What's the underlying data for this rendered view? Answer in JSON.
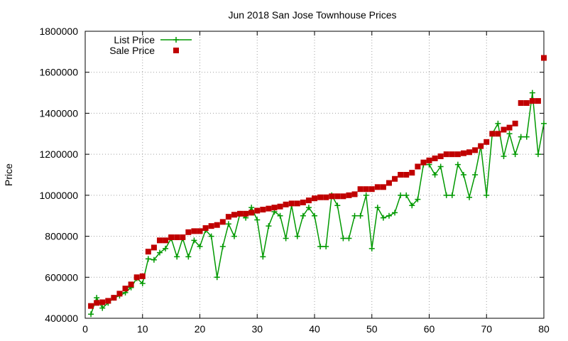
{
  "chart_data": {
    "type": "line",
    "title": "Jun 2018 San Jose Townhouse Prices",
    "xlabel": "",
    "ylabel": "Price",
    "xlim": [
      0,
      80
    ],
    "ylim": [
      400000,
      1800000
    ],
    "xticks": [
      0,
      10,
      20,
      30,
      40,
      50,
      60,
      70,
      80
    ],
    "yticks": [
      400000,
      600000,
      800000,
      1000000,
      1200000,
      1400000,
      1600000,
      1800000
    ],
    "grid": true,
    "legend": "top-left",
    "series": [
      {
        "name": "List Price",
        "style": "line-plus",
        "color": "#009900",
        "x": [
          1,
          2,
          3,
          4,
          5,
          6,
          7,
          8,
          9,
          10,
          11,
          12,
          13,
          14,
          15,
          16,
          17,
          18,
          19,
          20,
          21,
          22,
          23,
          24,
          25,
          26,
          27,
          28,
          29,
          30,
          31,
          32,
          33,
          34,
          35,
          36,
          37,
          38,
          39,
          40,
          41,
          42,
          43,
          44,
          45,
          46,
          47,
          48,
          49,
          50,
          51,
          52,
          53,
          54,
          55,
          56,
          57,
          58,
          59,
          60,
          61,
          62,
          63,
          64,
          65,
          66,
          67,
          68,
          69,
          70,
          71,
          72,
          73,
          74,
          75,
          76,
          77,
          78,
          79,
          80
        ],
        "values": [
          420000,
          500000,
          450000,
          475000,
          500000,
          510000,
          525000,
          550000,
          595000,
          570000,
          690000,
          685000,
          720000,
          740000,
          790000,
          700000,
          790000,
          700000,
          780000,
          750000,
          830000,
          800000,
          600000,
          750000,
          860000,
          800000,
          910000,
          890000,
          940000,
          880000,
          700000,
          850000,
          920000,
          900000,
          790000,
          950000,
          800000,
          900000,
          940000,
          900000,
          750000,
          750000,
          1000000,
          950000,
          790000,
          790000,
          900000,
          900000,
          1000000,
          740000,
          940000,
          890000,
          900000,
          915000,
          1000000,
          1000000,
          950000,
          980000,
          1150000,
          1150000,
          1100000,
          1140000,
          1000000,
          1000000,
          1150000,
          1100000,
          990000,
          1100000,
          1240000,
          1000000,
          1300000,
          1350000,
          1190000,
          1300000,
          1200000,
          1285000,
          1285000,
          1500000,
          1200000,
          1350000
        ]
      },
      {
        "name": "Sale Price",
        "style": "squares",
        "color": "#c00000",
        "x": [
          1,
          2,
          3,
          4,
          5,
          6,
          7,
          8,
          9,
          10,
          11,
          12,
          13,
          14,
          15,
          16,
          17,
          18,
          19,
          20,
          21,
          22,
          23,
          24,
          25,
          26,
          27,
          28,
          29,
          30,
          31,
          32,
          33,
          34,
          35,
          36,
          37,
          38,
          39,
          40,
          41,
          42,
          43,
          44,
          45,
          46,
          47,
          48,
          49,
          50,
          51,
          52,
          53,
          54,
          55,
          56,
          57,
          58,
          59,
          60,
          61,
          62,
          63,
          64,
          65,
          66,
          67,
          68,
          69,
          70,
          71,
          72,
          73,
          74,
          75,
          76,
          77,
          78,
          79,
          80
        ],
        "values": [
          460000,
          475000,
          478000,
          485000,
          500000,
          520000,
          545000,
          565000,
          600000,
          605000,
          725000,
          745000,
          780000,
          780000,
          795000,
          795000,
          795000,
          820000,
          825000,
          825000,
          840000,
          850000,
          855000,
          870000,
          895000,
          905000,
          910000,
          910000,
          915000,
          925000,
          930000,
          935000,
          940000,
          945000,
          955000,
          960000,
          960000,
          965000,
          975000,
          985000,
          990000,
          990000,
          995000,
          995000,
          995000,
          1000000,
          1005000,
          1030000,
          1030000,
          1030000,
          1040000,
          1040000,
          1060000,
          1080000,
          1100000,
          1100000,
          1110000,
          1140000,
          1160000,
          1170000,
          1180000,
          1190000,
          1200000,
          1200000,
          1200000,
          1205000,
          1210000,
          1220000,
          1240000,
          1260000,
          1300000,
          1300000,
          1320000,
          1330000,
          1350000,
          1450000,
          1450000,
          1460000,
          1460000,
          1670000
        ]
      }
    ]
  }
}
